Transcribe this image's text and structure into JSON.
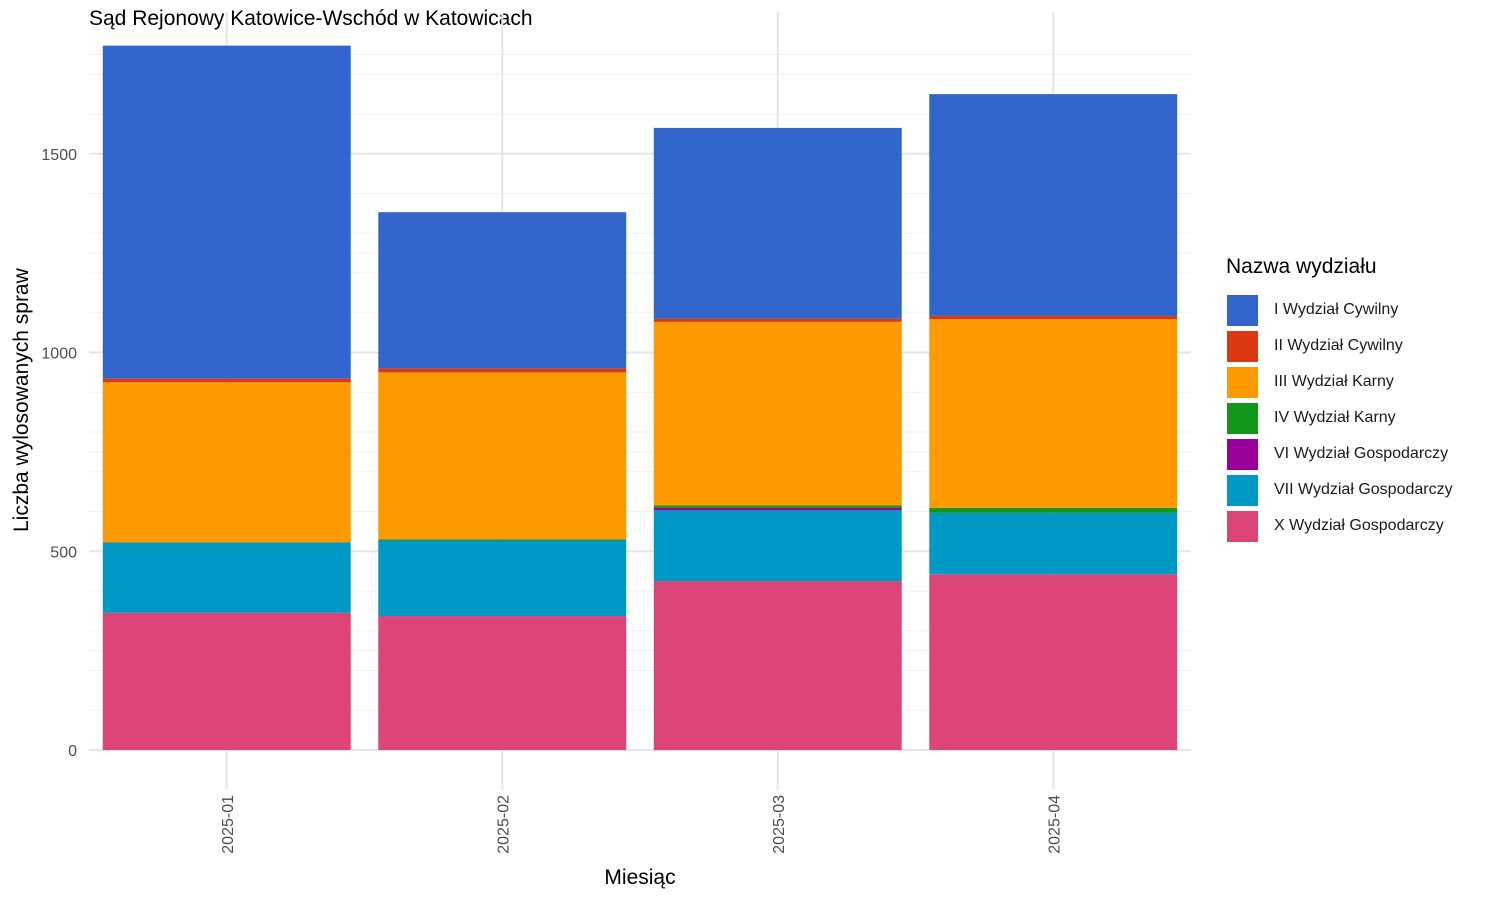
{
  "chart_data": {
    "type": "bar",
    "stacked": true,
    "title": "Sąd Rejonowy Katowice-Wschód w Katowicach",
    "xlabel": "Miesiąc",
    "ylabel": "Liczba wylosowanych spraw",
    "ylim": [
      0,
      1790
    ],
    "y_ticks": [
      "0",
      "500",
      "1000",
      "1500"
    ],
    "categories": [
      "2025-01",
      "2025-02",
      "2025-03",
      "2025-04"
    ],
    "legend_title": "Nazwa wydziału",
    "legend_position": "right",
    "grid": true,
    "series": [
      {
        "name": "X Wydział Gospodarczy",
        "color": "#DD4477",
        "values": [
          345,
          337,
          425,
          442
        ]
      },
      {
        "name": "VII Wydział Gospodarczy",
        "color": "#0099C6",
        "values": [
          177,
          190,
          178,
          155
        ]
      },
      {
        "name": "VI Wydział Gospodarczy",
        "color": "#990099",
        "values": [
          0,
          0,
          6,
          0
        ]
      },
      {
        "name": "IV Wydział Karny",
        "color": "#109618",
        "values": [
          0,
          3,
          6,
          12
        ]
      },
      {
        "name": "III Wydział Karny",
        "color": "#FF9900",
        "values": [
          403,
          420,
          462,
          475
        ]
      },
      {
        "name": "II Wydział Cywilny",
        "color": "#DC3912",
        "values": [
          9,
          10,
          8,
          8
        ]
      },
      {
        "name": "I Wydział Cywilny",
        "color": "#3366CC",
        "values": [
          838,
          393,
          480,
          558
        ]
      }
    ]
  }
}
